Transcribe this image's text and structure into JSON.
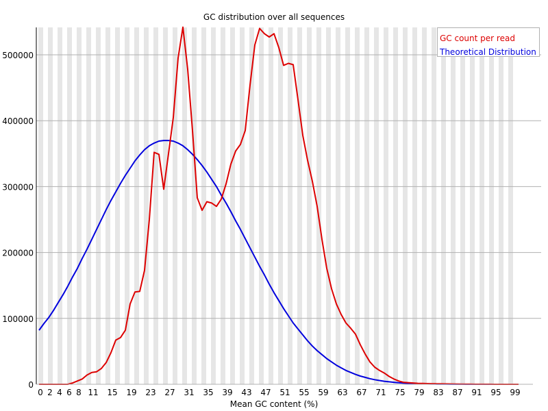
{
  "chart_data": {
    "type": "line",
    "title": "GC distribution over all sequences",
    "xlabel": "Mean GC content (%)",
    "ylabel": "",
    "xlim": [
      0,
      100
    ],
    "ylim": [
      0,
      540000
    ],
    "y_ticks": [
      0,
      100000,
      200000,
      300000,
      400000,
      500000
    ],
    "y_tick_labels": [
      "0",
      "100000",
      "200000",
      "300000",
      "400000",
      "500000"
    ],
    "x_tick_labels": [
      "0",
      "2",
      "4",
      "6",
      "8",
      "11",
      "15",
      "19",
      "23",
      "27",
      "31",
      "35",
      "39",
      "43",
      "47",
      "51",
      "55",
      "59",
      "63",
      "67",
      "71",
      "75",
      "79",
      "83",
      "87",
      "91",
      "95",
      "99"
    ],
    "x_tick_positions": [
      0,
      2,
      4,
      6,
      8,
      11,
      15,
      19,
      23,
      27,
      31,
      35,
      39,
      43,
      47,
      51,
      55,
      59,
      63,
      67,
      71,
      75,
      79,
      83,
      87,
      91,
      95,
      99
    ],
    "grid": true,
    "legend_position": "top-right",
    "series": [
      {
        "name": "GC count per read",
        "color": "#dd0000",
        "x": [
          0,
          1,
          2,
          3,
          4,
          5,
          6,
          7,
          8,
          9,
          10,
          11,
          12,
          13,
          14,
          15,
          16,
          17,
          18,
          19,
          20,
          21,
          22,
          23,
          24,
          25,
          26,
          27,
          28,
          29,
          30,
          31,
          32,
          33,
          34,
          35,
          36,
          37,
          38,
          39,
          40,
          41,
          42,
          43,
          44,
          45,
          46,
          47,
          48,
          49,
          50,
          51,
          52,
          53,
          54,
          55,
          56,
          57,
          58,
          59,
          60,
          61,
          62,
          63,
          64,
          65,
          66,
          67,
          68,
          69,
          70,
          71,
          72,
          73,
          74,
          75,
          76,
          77,
          78,
          79,
          80,
          81,
          82,
          83,
          84,
          85,
          86,
          87,
          88,
          89,
          90,
          91,
          92,
          93,
          94,
          95,
          96,
          97,
          98,
          99,
          100
        ],
        "values": [
          0,
          0,
          0,
          0,
          0,
          0,
          0,
          2000,
          5000,
          8000,
          14000,
          18000,
          19000,
          24000,
          33000,
          48000,
          67000,
          71000,
          82000,
          122000,
          140000,
          141000,
          173000,
          250000,
          352000,
          349000,
          296000,
          350000,
          405000,
          495000,
          542000,
          478000,
          385000,
          283000,
          264000,
          277000,
          275000,
          270000,
          281000,
          304000,
          334000,
          354000,
          364000,
          385000,
          454000,
          515000,
          540000,
          532000,
          527000,
          532000,
          511000,
          484000,
          487000,
          485000,
          432000,
          378000,
          340000,
          308000,
          270000,
          220000,
          176000,
          145000,
          122000,
          106000,
          93000,
          85000,
          76000,
          60000,
          46000,
          34000,
          26000,
          21000,
          17000,
          12000,
          8000,
          5000,
          3000,
          2500,
          2000,
          1500,
          1200,
          1000,
          900,
          800,
          700,
          600,
          500,
          400,
          300,
          250,
          200,
          150,
          100,
          80,
          60,
          40,
          30,
          20,
          10,
          5,
          0
        ]
      },
      {
        "name": "Theoretical Distribution",
        "color": "#0000dd",
        "x": [
          0,
          1,
          2,
          3,
          4,
          5,
          6,
          7,
          8,
          9,
          10,
          11,
          12,
          13,
          14,
          15,
          16,
          17,
          18,
          19,
          20,
          21,
          22,
          23,
          24,
          25,
          26,
          27,
          28,
          29,
          30,
          31,
          32,
          33,
          34,
          35,
          36,
          37,
          38,
          39,
          40,
          41,
          42,
          43,
          44,
          45,
          46,
          47,
          48,
          49,
          50,
          51,
          52,
          53,
          54,
          55,
          56,
          57,
          58,
          59,
          60,
          61,
          62,
          63,
          64,
          65,
          66,
          67,
          68,
          69,
          70,
          71,
          72,
          73,
          74,
          75,
          76,
          77,
          78,
          79,
          80,
          81,
          82,
          83,
          84,
          85,
          86,
          87,
          88,
          89,
          90,
          91,
          92,
          93,
          94,
          95,
          96,
          97,
          98,
          99,
          100
        ],
        "values": [
          82000,
          92000,
          101000,
          112000,
          124000,
          136000,
          149000,
          163000,
          176000,
          191000,
          205000,
          220000,
          235000,
          250000,
          265000,
          279000,
          292000,
          305000,
          317000,
          328000,
          339000,
          348000,
          356000,
          362000,
          366000,
          369000,
          370000,
          370000,
          369000,
          366000,
          362000,
          356000,
          349000,
          341000,
          332000,
          322000,
          311000,
          300000,
          287000,
          275000,
          262000,
          248000,
          235000,
          221000,
          207000,
          193000,
          179000,
          166000,
          152000,
          139000,
          127000,
          115000,
          104000,
          93000,
          84000,
          75000,
          66000,
          58000,
          51000,
          45000,
          39000,
          34000,
          29000,
          25000,
          21000,
          18000,
          15000,
          12500,
          10500,
          8500,
          7000,
          5700,
          4600,
          3700,
          3000,
          2400,
          1900,
          1500,
          1200,
          900,
          700,
          550,
          430,
          330,
          250,
          190,
          140,
          100,
          70,
          50,
          35,
          25,
          15,
          10,
          6,
          4,
          2,
          1,
          0,
          0,
          0
        ]
      }
    ]
  },
  "legend": {
    "items": [
      {
        "label": "GC count per read",
        "color": "#dd0000"
      },
      {
        "label": "Theoretical Distribution",
        "color": "#0000dd"
      }
    ]
  },
  "style": {
    "stripe_color": "#e6e6e6",
    "gridline_color": "#b0b0b0",
    "axis_color": "#000000"
  }
}
